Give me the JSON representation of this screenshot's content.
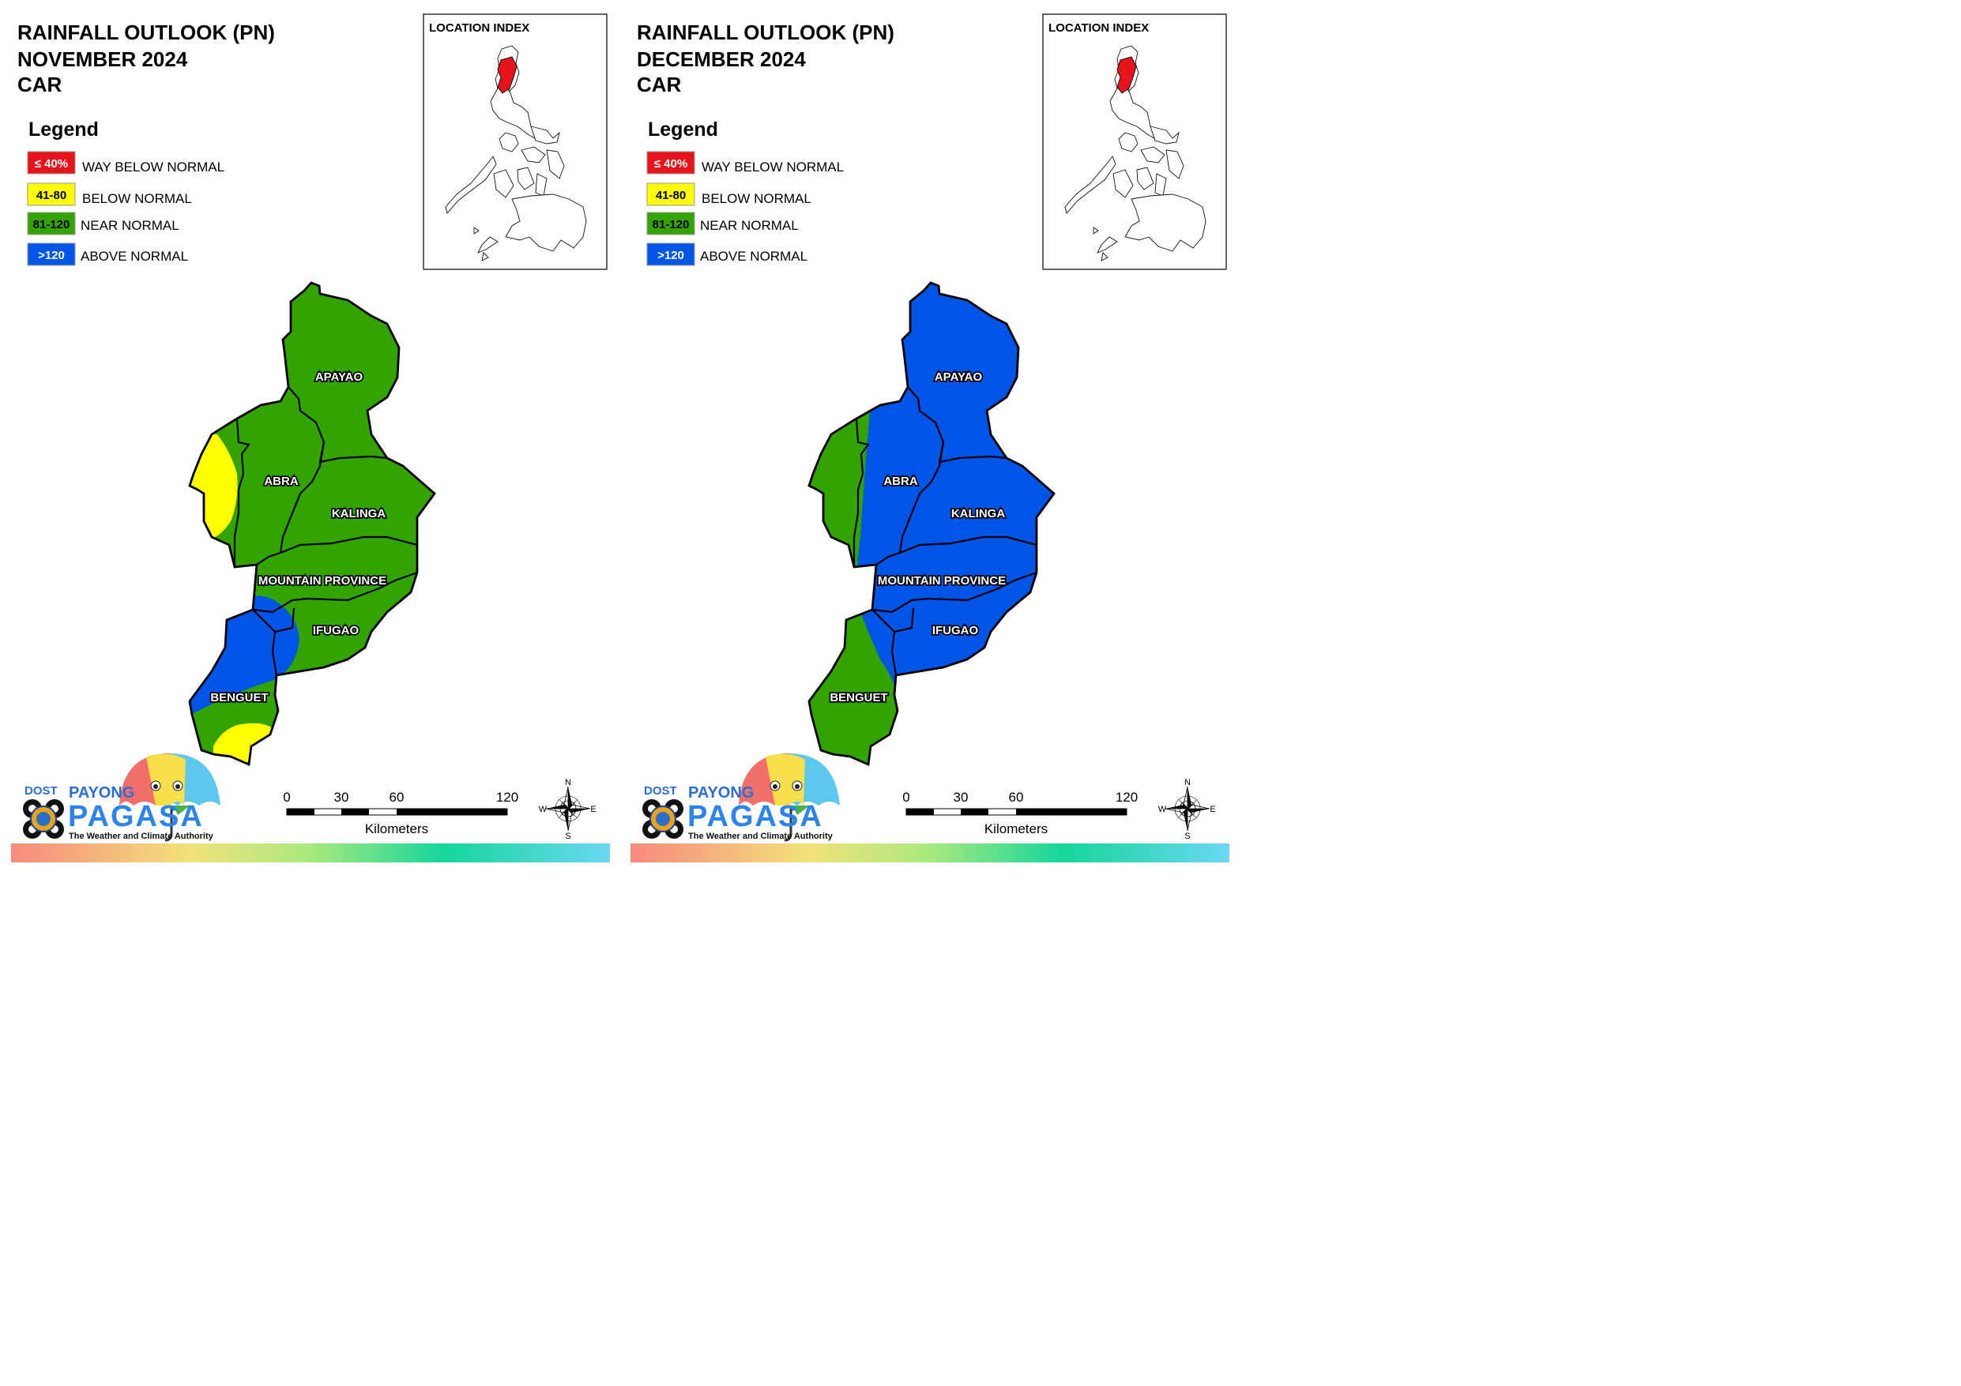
{
  "panels": [
    {
      "title_line1": "RAINFALL OUTLOOK (PN)",
      "title_line2": "NOVEMBER 2024",
      "title_line3": "CAR",
      "legend_title": "Legend",
      "legend": [
        {
          "range": "≤ 40%",
          "label": "WAY BELOW NORMAL",
          "color": "#e8141b",
          "text_color": "#ffffff"
        },
        {
          "range": "41-80",
          "label": "BELOW NORMAL",
          "color": "#ffff00",
          "text_color": "#000000"
        },
        {
          "range": "81-120",
          "label": "NEAR NORMAL",
          "color": "#33a300",
          "text_color": "#000000"
        },
        {
          "range": ">120",
          "label": "ABOVE NORMAL",
          "color": "#0055e6",
          "text_color": "#ffffff"
        }
      ],
      "location_index_label": "LOCATION INDEX",
      "provinces": [
        "APAYAO",
        "ABRA",
        "KALINGA",
        "MOUNTAIN PROVINCE",
        "IFUGAO",
        "BENGUET"
      ],
      "scale_ticks": [
        "0",
        "30",
        "60",
        "120"
      ],
      "scale_unit": "Kilometers",
      "compass": {
        "n": "N",
        "s": "S",
        "e": "E",
        "w": "W"
      },
      "logo": {
        "dost": "DOST",
        "payong": "PAYONG",
        "pagasa": "PAGASA",
        "tagline": "The Weather and Climate Authority"
      }
    },
    {
      "title_line1": "RAINFALL OUTLOOK (PN)",
      "title_line2": "DECEMBER 2024",
      "title_line3": "CAR",
      "legend_title": "Legend",
      "legend": [
        {
          "range": "≤ 40%",
          "label": "WAY BELOW NORMAL",
          "color": "#e8141b",
          "text_color": "#ffffff"
        },
        {
          "range": "41-80",
          "label": "BELOW NORMAL",
          "color": "#ffff00",
          "text_color": "#000000"
        },
        {
          "range": "81-120",
          "label": "NEAR NORMAL",
          "color": "#33a300",
          "text_color": "#000000"
        },
        {
          "range": ">120",
          "label": "ABOVE NORMAL",
          "color": "#0055e6",
          "text_color": "#ffffff"
        }
      ],
      "location_index_label": "LOCATION INDEX",
      "provinces": [
        "APAYAO",
        "ABRA",
        "KALINGA",
        "MOUNTAIN PROVINCE",
        "IFUGAO",
        "BENGUET"
      ],
      "scale_ticks": [
        "0",
        "30",
        "60",
        "120"
      ],
      "scale_unit": "Kilometers",
      "compass": {
        "n": "N",
        "s": "S",
        "e": "E",
        "w": "W"
      },
      "logo": {
        "dost": "DOST",
        "payong": "PAYONG",
        "pagasa": "PAGASA",
        "tagline": "The Weather and Climate Authority"
      }
    }
  ]
}
